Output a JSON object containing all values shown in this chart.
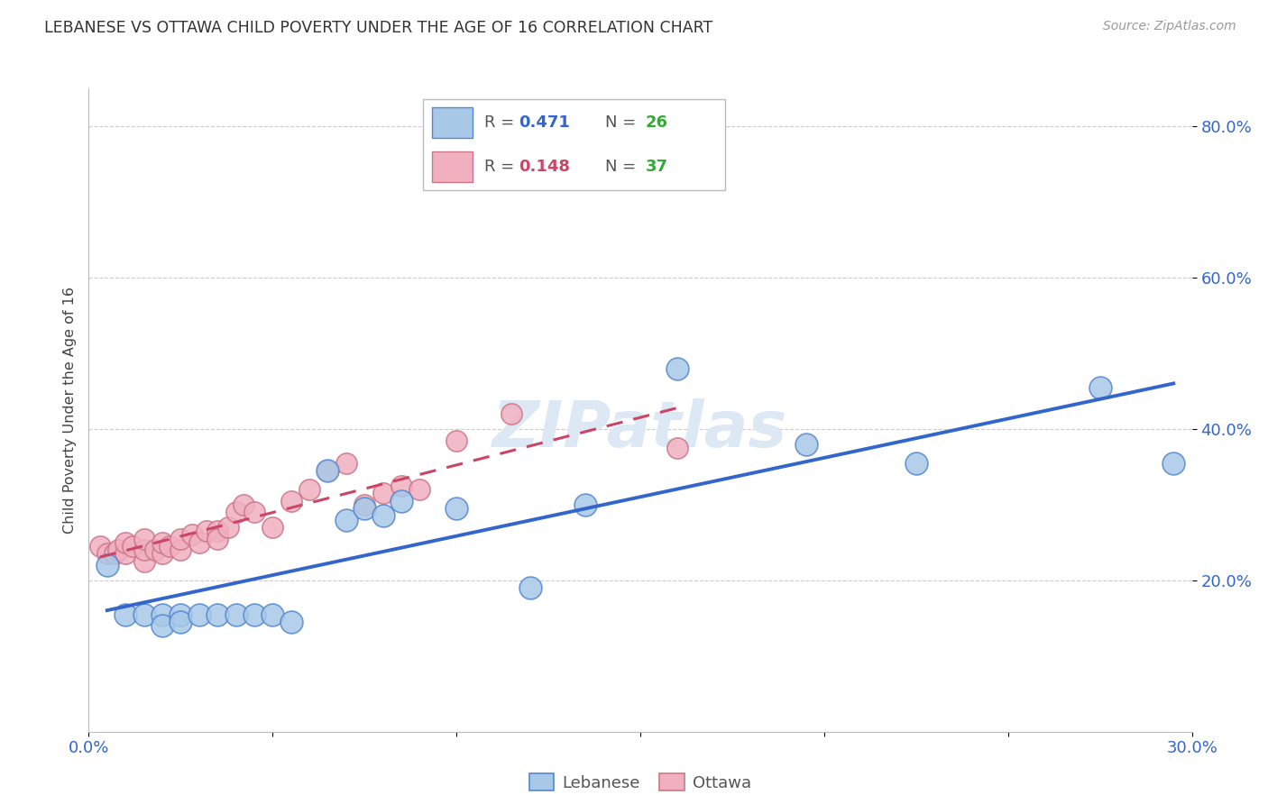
{
  "title": "LEBANESE VS OTTAWA CHILD POVERTY UNDER THE AGE OF 16 CORRELATION CHART",
  "source": "Source: ZipAtlas.com",
  "ylabel": "Child Poverty Under the Age of 16",
  "xlim": [
    0.0,
    0.3
  ],
  "ylim": [
    0.0,
    0.85
  ],
  "xticks": [
    0.0,
    0.05,
    0.1,
    0.15,
    0.2,
    0.25,
    0.3
  ],
  "xtick_labels": [
    "0.0%",
    "",
    "",
    "",
    "",
    "",
    "30.0%"
  ],
  "ytick_vals": [
    0.2,
    0.4,
    0.6,
    0.8
  ],
  "ytick_labels": [
    "20.0%",
    "40.0%",
    "60.0%",
    "80.0%"
  ],
  "blue_face": "#a8c8e8",
  "blue_edge": "#5588cc",
  "pink_face": "#f0b0c0",
  "pink_edge": "#cc7788",
  "blue_line": "#3366cc",
  "pink_line": "#cc4466",
  "watermark": "ZIPatlas",
  "watermark_color": "#dde8f5",
  "leb_x": [
    0.005,
    0.01,
    0.015,
    0.02,
    0.02,
    0.025,
    0.025,
    0.03,
    0.035,
    0.04,
    0.045,
    0.05,
    0.055,
    0.065,
    0.07,
    0.075,
    0.08,
    0.085,
    0.1,
    0.12,
    0.135,
    0.16,
    0.195,
    0.225,
    0.275,
    0.295
  ],
  "leb_y": [
    0.22,
    0.155,
    0.155,
    0.155,
    0.14,
    0.155,
    0.145,
    0.155,
    0.155,
    0.155,
    0.155,
    0.155,
    0.145,
    0.345,
    0.28,
    0.295,
    0.285,
    0.305,
    0.295,
    0.19,
    0.3,
    0.48,
    0.38,
    0.355,
    0.455,
    0.355
  ],
  "ott_x": [
    0.003,
    0.005,
    0.007,
    0.008,
    0.01,
    0.01,
    0.012,
    0.015,
    0.015,
    0.015,
    0.018,
    0.02,
    0.02,
    0.022,
    0.025,
    0.025,
    0.028,
    0.03,
    0.032,
    0.035,
    0.035,
    0.038,
    0.04,
    0.042,
    0.045,
    0.05,
    0.055,
    0.06,
    0.065,
    0.07,
    0.075,
    0.08,
    0.085,
    0.09,
    0.1,
    0.115,
    0.16
  ],
  "ott_y": [
    0.245,
    0.235,
    0.235,
    0.24,
    0.235,
    0.25,
    0.245,
    0.225,
    0.24,
    0.255,
    0.24,
    0.235,
    0.25,
    0.245,
    0.24,
    0.255,
    0.26,
    0.25,
    0.265,
    0.265,
    0.255,
    0.27,
    0.29,
    0.3,
    0.29,
    0.27,
    0.305,
    0.32,
    0.345,
    0.355,
    0.3,
    0.315,
    0.325,
    0.32,
    0.385,
    0.42,
    0.375
  ]
}
